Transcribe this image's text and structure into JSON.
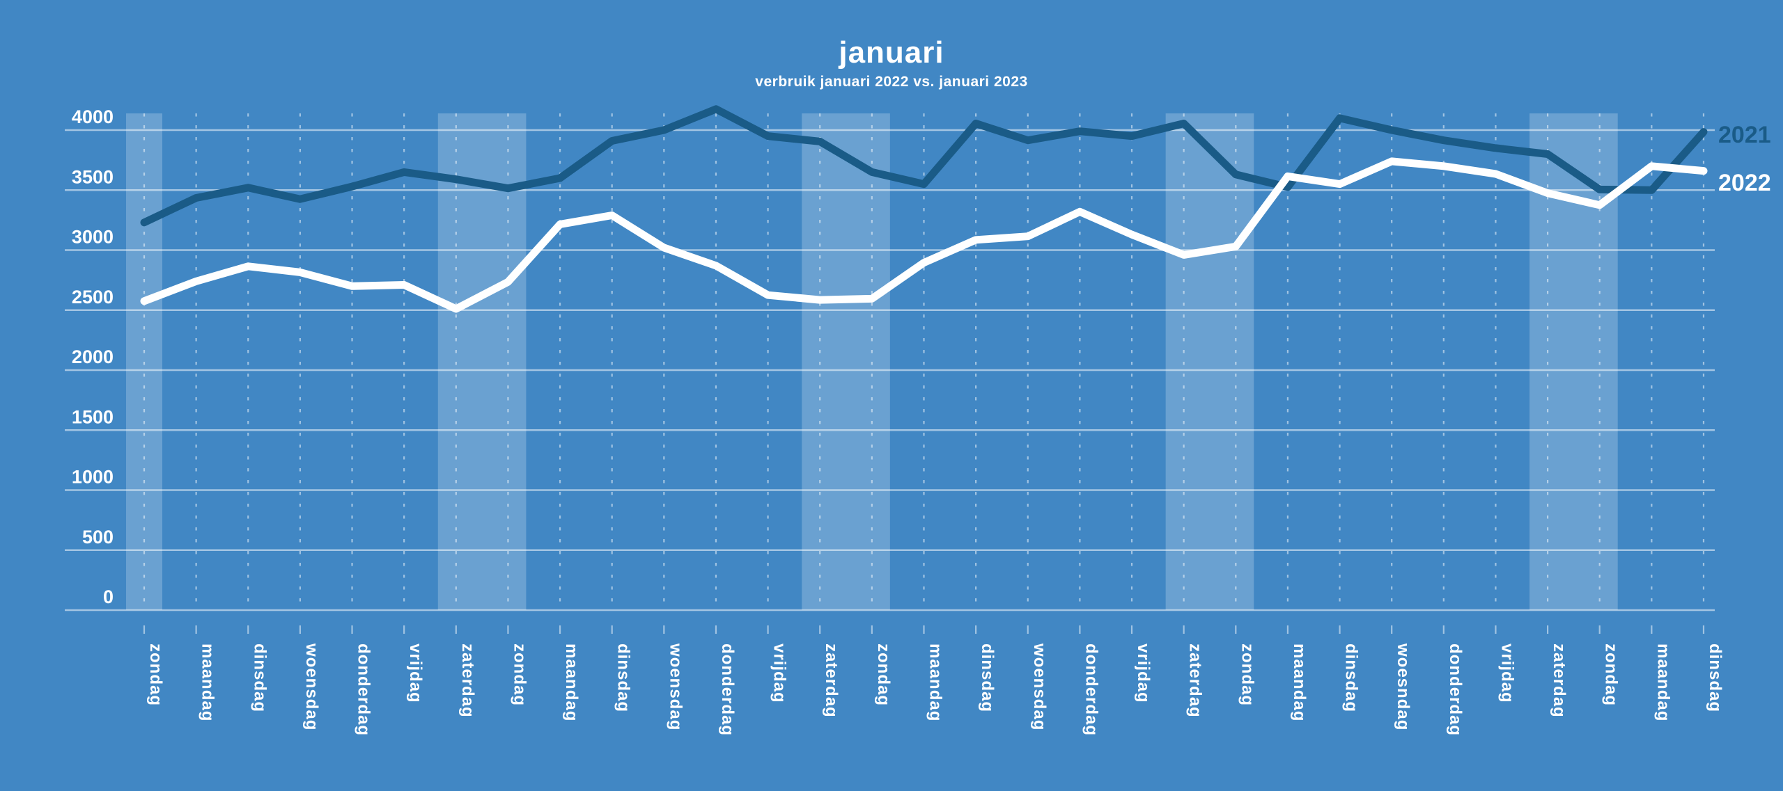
{
  "title": "januari",
  "subtitle": "verbruik januari 2022 vs. januari 2023",
  "legend": {
    "series_2021_label": "2021",
    "series_2022_label": "2022",
    "position": "right-end-of-lines"
  },
  "colors": {
    "background": "#4187c4",
    "weekend_band": "rgba(255,255,255,0.22)",
    "gridline": "rgba(255,255,255,0.52)",
    "day_guide": "rgba(255,255,255,0.50)",
    "line_2021": "#1a5b87",
    "line_2022": "#ffffff",
    "text": "#ffffff"
  },
  "chart_data": {
    "type": "line",
    "title": "januari",
    "subtitle": "verbruik januari 2022 vs. januari 2023",
    "xlabel": "",
    "ylabel": "",
    "ylim": [
      0,
      4000
    ],
    "yticks": [
      0,
      500,
      1000,
      1500,
      2000,
      2500,
      3000,
      3500,
      4000
    ],
    "grid": {
      "horizontal": "solid",
      "vertical": "dotted-per-day"
    },
    "legend_position": "right",
    "categories": [
      "zondag",
      "maandag",
      "dinsdag",
      "woensdag",
      "donderdag",
      "vrijdag",
      "zaterdag",
      "zondag",
      "maandag",
      "dinsdag",
      "woensdag",
      "donderdag",
      "vrijdag",
      "zaterdag",
      "zondag",
      "maandag",
      "dinsdag",
      "woensdag",
      "donderdag",
      "vrijdag",
      "zaterdag",
      "zondag",
      "maandag",
      "dinsdag",
      "woesndag",
      "donderdag",
      "vrijdag",
      "zaterdag",
      "zondag",
      "maandag",
      "dinsdag"
    ],
    "weekend_band_indices": [
      [
        0
      ],
      [
        6,
        7
      ],
      [
        13,
        14
      ],
      [
        20,
        21
      ],
      [
        27,
        28
      ]
    ],
    "series": [
      {
        "name": "2021",
        "color": "#1a5b87",
        "values": [
          3230,
          3435,
          3520,
          3425,
          3530,
          3650,
          3590,
          3515,
          3600,
          3910,
          4000,
          4175,
          3950,
          3905,
          3650,
          3550,
          4055,
          3915,
          3990,
          3950,
          4055,
          3630,
          3525,
          4100,
          4000,
          3915,
          3850,
          3800,
          3505,
          3500,
          3985
        ]
      },
      {
        "name": "2022",
        "color": "#ffffff",
        "values": [
          2575,
          2740,
          2865,
          2815,
          2700,
          2710,
          2510,
          2735,
          3215,
          3290,
          3020,
          2870,
          2625,
          2585,
          2595,
          2895,
          3085,
          3115,
          3320,
          3130,
          2960,
          3030,
          3615,
          3550,
          3740,
          3700,
          3635,
          3475,
          3375,
          3700,
          3660
        ]
      }
    ]
  }
}
